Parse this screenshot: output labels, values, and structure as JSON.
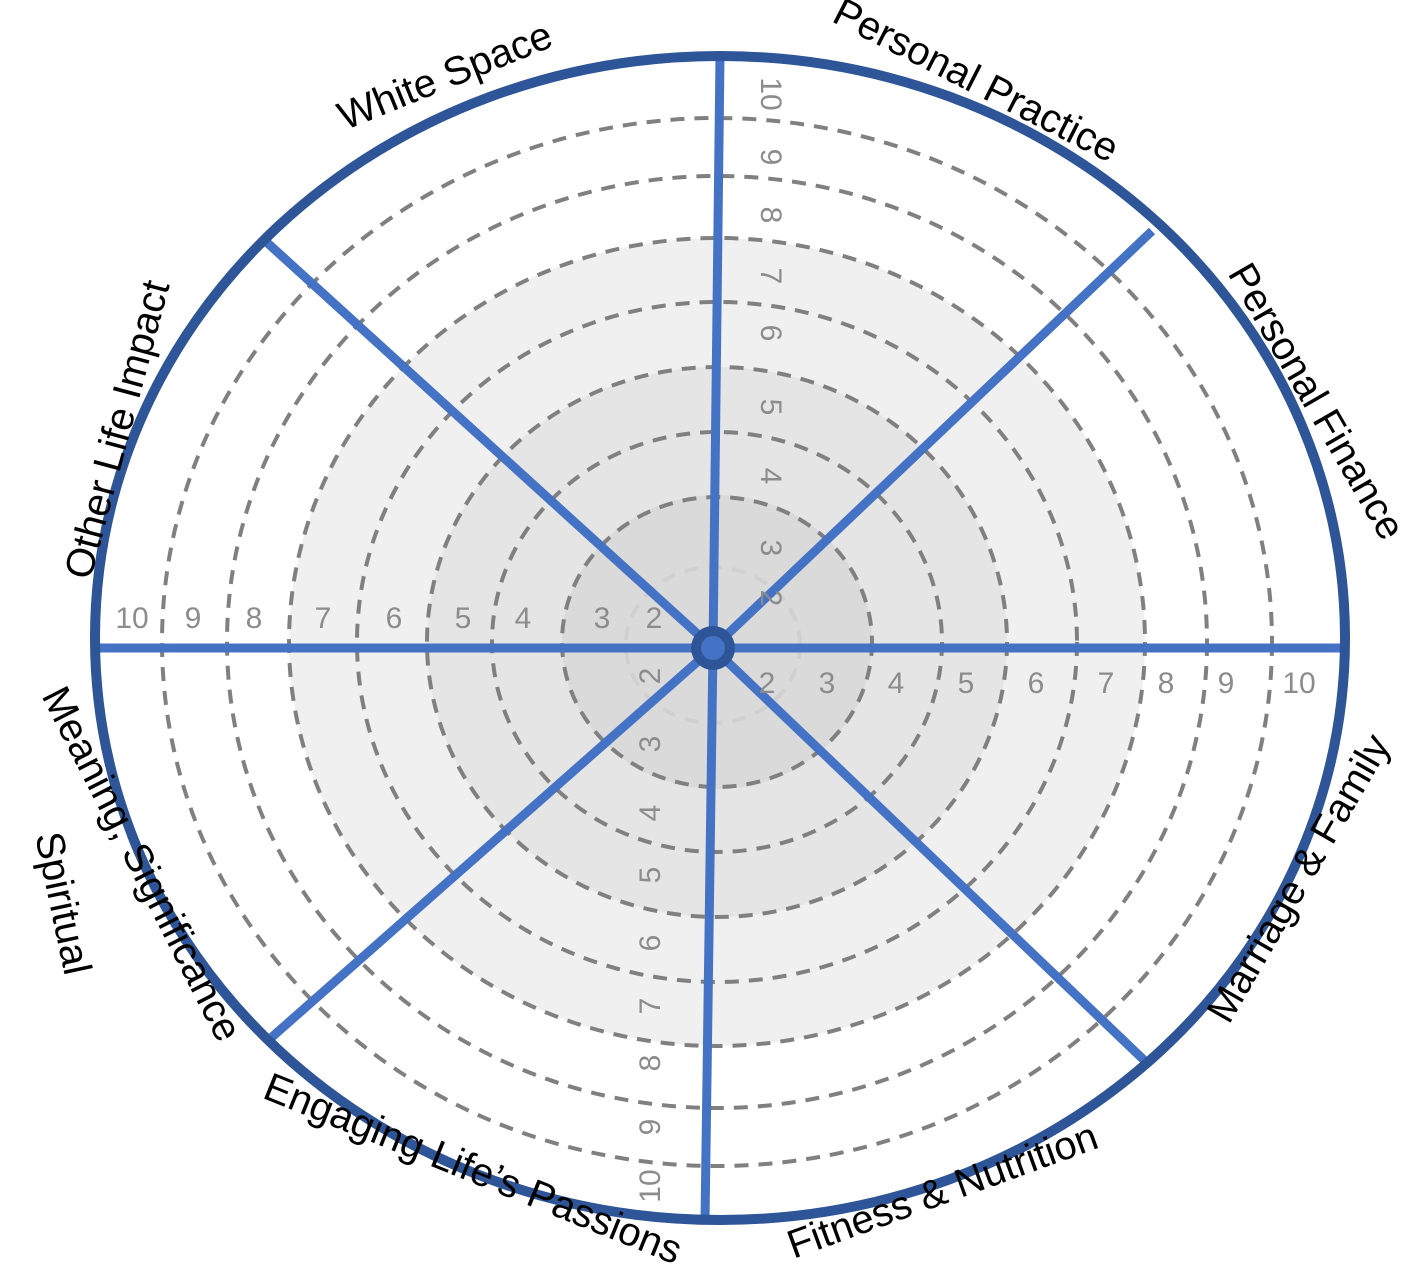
{
  "wheel": {
    "scale": {
      "min": 0,
      "max": 10,
      "ring_values": [
        2,
        3,
        4,
        5,
        6,
        7,
        8,
        9
      ],
      "shaded_band_levels": [
        2,
        5,
        8
      ]
    },
    "categories": [
      "Personal Practice",
      "Personal Finance",
      "Marriage & Family",
      "Fitness & Nutrition",
      "Engaging Life’s Passions",
      "Meaning, Significance",
      "Spiritual",
      "Other Life Impact",
      "White Space"
    ],
    "tick_labels": {
      "top": [
        "10",
        "9",
        "8",
        "7",
        "6",
        "5",
        "4",
        "3",
        "2"
      ],
      "right": [
        "2",
        "3",
        "4",
        "5",
        "6",
        "7",
        "8",
        "9",
        "10"
      ],
      "bottom": [
        "2",
        "3",
        "4",
        "5",
        "6",
        "7",
        "8",
        "9",
        "10"
      ],
      "left": [
        "10",
        "9",
        "8",
        "7",
        "6",
        "5",
        "4",
        "3",
        "2"
      ]
    },
    "colors": {
      "rim": "#2e5597",
      "spokes": "#4472c4",
      "rings": "#808080",
      "inner_ring": "#d0d0d0",
      "band_light": "#f0f0f0",
      "band_mid": "#e5e5e5",
      "band_dark": "#dadada",
      "tick_text": "#8c8c8c"
    }
  }
}
